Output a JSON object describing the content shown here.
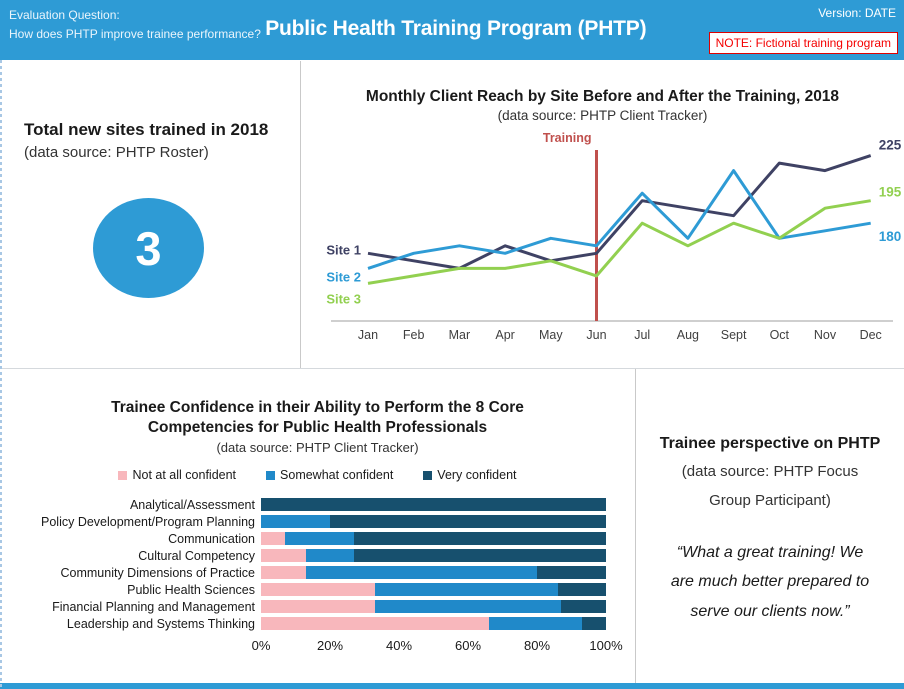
{
  "header": {
    "eval_label": "Evaluation Question:",
    "eval_question": "How does PHTP improve trainee performance?",
    "title": "Public Health Training Program (PHTP)",
    "version": "Version: DATE",
    "note": "NOTE: Fictional training program"
  },
  "colors": {
    "header_bg": "#2E9BD5",
    "accent_blue": "#2E9BD5",
    "site1": "#3F4264",
    "site2": "#2E9BD5",
    "site3": "#92D050",
    "training_line": "#C0504D",
    "bar_pink": "#F8B7BC",
    "bar_blue": "#2089C9",
    "bar_navy": "#17506E",
    "note_red": "#F40000",
    "axis_gray": "#BFBFBF"
  },
  "sites_panel": {
    "title": "Total new sites trained in 2018",
    "source": "(data source: PHTP Roster)",
    "value": "3"
  },
  "quote_panel": {
    "title": "Trainee perspective on PHTP",
    "source_lines": [
      "(data source: PHTP Focus",
      "Group Participant)"
    ],
    "quote_lines": [
      "“What a great training! We",
      "are much better prepared to",
      "serve our clients now.”"
    ]
  },
  "chart_data": [
    {
      "type": "line",
      "title": "Monthly Client Reach by Site Before and After the Training, 2018",
      "subtitle": "(data source: PHTP Client Tracker)",
      "x": [
        "Jan",
        "Feb",
        "Mar",
        "Apr",
        "May",
        "Jun",
        "Jul",
        "Aug",
        "Sept",
        "Oct",
        "Nov",
        "Dec"
      ],
      "ylim": [
        115,
        235
      ],
      "grid": false,
      "legend_position": "left-inline",
      "annotation": {
        "label": "Training",
        "x": "Jun"
      },
      "series": [
        {
          "name": "Site 1",
          "color_key": "site1",
          "end_label": "225",
          "values": [
            160,
            155,
            150,
            165,
            155,
            160,
            195,
            190,
            185,
            220,
            215,
            225
          ]
        },
        {
          "name": "Site 2",
          "color_key": "site2",
          "end_label": "180",
          "values": [
            150,
            160,
            165,
            160,
            170,
            165,
            200,
            170,
            215,
            170,
            175,
            180
          ]
        },
        {
          "name": "Site 3",
          "color_key": "site3",
          "end_label": "195",
          "values": [
            140,
            145,
            150,
            150,
            155,
            145,
            180,
            165,
            180,
            170,
            190,
            195
          ]
        }
      ]
    },
    {
      "type": "bar",
      "stacked": true,
      "orientation": "horizontal",
      "title": "Trainee Confidence in their Ability to Perform the 8 Core Competencies for Public Health Professionals",
      "title_lines": [
        "Trainee Confidence in their Ability to Perform the 8 Core",
        "Competencies for Public Health Professionals"
      ],
      "subtitle": "(data source: PHTP Client Tracker)",
      "xlim": [
        0,
        100
      ],
      "x_ticks": [
        "0%",
        "20%",
        "40%",
        "60%",
        "80%",
        "100%"
      ],
      "categories": [
        "Analytical/Assessment",
        "Policy Development/Program Planning",
        "Communication",
        "Cultural Competency",
        "Community Dimensions of Practice",
        "Public Health Sciences",
        "Financial Planning and Management",
        "Leadership and Systems Thinking"
      ],
      "series": [
        {
          "name": "Not at all confident",
          "color_key": "bar_pink",
          "values": [
            0,
            0,
            7,
            13,
            13,
            33,
            33,
            66
          ]
        },
        {
          "name": "Somewhat confident",
          "color_key": "bar_blue",
          "values": [
            0,
            20,
            20,
            14,
            67,
            53,
            54,
            27
          ]
        },
        {
          "name": "Very confident",
          "color_key": "bar_navy",
          "values": [
            100,
            80,
            73,
            73,
            20,
            14,
            13,
            7
          ]
        }
      ]
    }
  ]
}
